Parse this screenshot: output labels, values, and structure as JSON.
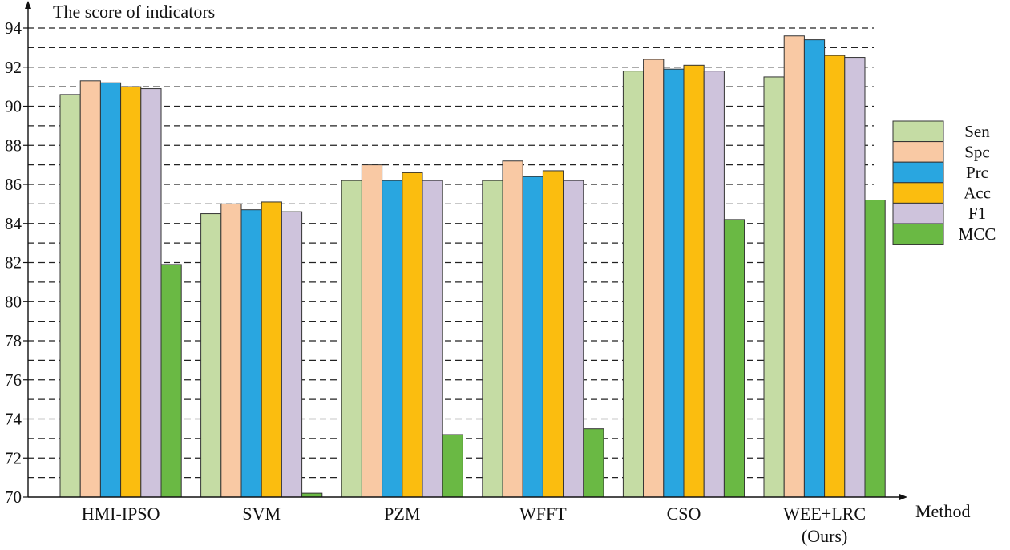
{
  "chart_data": {
    "type": "bar",
    "title": "",
    "ylabel": "The score of indicators",
    "xlabel": "Method",
    "ylim": [
      70,
      94
    ],
    "yticks": [
      "70",
      "72",
      "74",
      "76",
      "78",
      "80",
      "82",
      "84",
      "86",
      "88",
      "90",
      "92",
      "94"
    ],
    "grid": "dashed horizontal",
    "legend_position": "right",
    "categories": [
      [
        "HMI-IPSO"
      ],
      [
        "SVM"
      ],
      [
        "PZM"
      ],
      [
        "WFFT"
      ],
      [
        "CSO"
      ],
      [
        "WEE+LRC",
        "(Ours)"
      ]
    ],
    "series": [
      {
        "name": "Sen",
        "color": "#c5dca4",
        "values": [
          90.6,
          84.5,
          86.2,
          86.2,
          91.8,
          91.5
        ]
      },
      {
        "name": "Spc",
        "color": "#f9c9a4",
        "values": [
          91.3,
          85.0,
          87.0,
          87.2,
          92.4,
          93.6
        ]
      },
      {
        "name": "Prc",
        "color": "#29a6e0",
        "values": [
          91.2,
          84.7,
          86.2,
          86.4,
          91.9,
          93.4
        ]
      },
      {
        "name": "Acc",
        "color": "#fbbd0f",
        "values": [
          91.0,
          85.1,
          86.6,
          86.7,
          92.1,
          92.6
        ]
      },
      {
        "name": "F1",
        "color": "#cec3dc",
        "values": [
          90.9,
          84.6,
          86.2,
          86.2,
          91.8,
          92.5
        ]
      },
      {
        "name": "MCC",
        "color": "#6ab944",
        "values": [
          81.9,
          70.2,
          73.2,
          73.5,
          84.2,
          85.2
        ]
      }
    ]
  }
}
